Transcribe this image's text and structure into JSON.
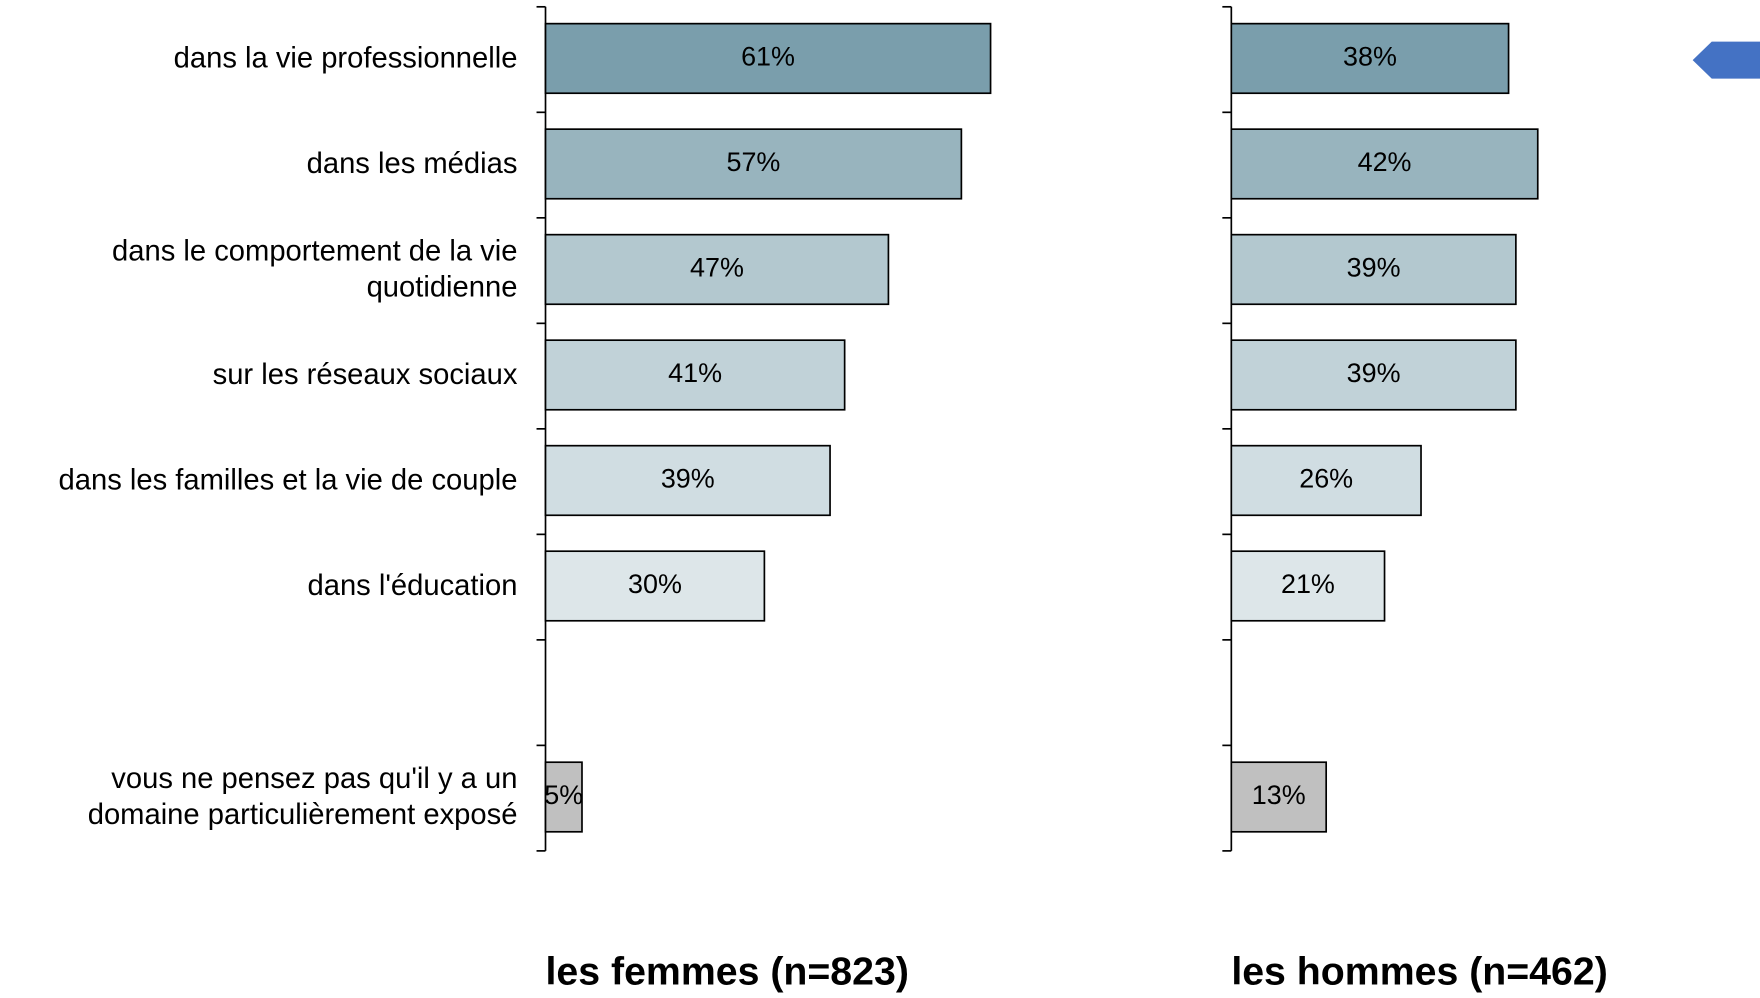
{
  "chart_data": {
    "type": "bar",
    "orientation": "horizontal",
    "categories": [
      "dans la vie professionnelle",
      "dans les médias",
      "dans le comportement de la vie\nquotidienne",
      "sur les réseaux sociaux",
      "dans les familles et la vie de couple",
      "dans l'éducation",
      null,
      "vous ne pensez pas qu'il y a un\ndomaine particulièrement exposé"
    ],
    "colors": [
      "#7a9eac",
      "#98b4be",
      "#b3c8cf",
      "#c1d2d8",
      "#d0dde2",
      "#dde6e9",
      null,
      "#c0c0c0"
    ],
    "xlim": [
      0,
      100
    ],
    "series": [
      {
        "name": "les femmes (n=823)",
        "values": [
          61,
          57,
          47,
          41,
          39,
          30,
          null,
          5
        ],
        "value_labels": [
          "61%",
          "57%",
          "47%",
          "41%",
          "39%",
          "30%",
          null,
          "5%"
        ]
      },
      {
        "name": "les hommes (n=462)",
        "values": [
          38,
          42,
          39,
          39,
          26,
          21,
          null,
          13
        ],
        "value_labels": [
          "38%",
          "42%",
          "39%",
          "39%",
          "26%",
          "21%",
          null,
          "13%"
        ]
      }
    ]
  }
}
